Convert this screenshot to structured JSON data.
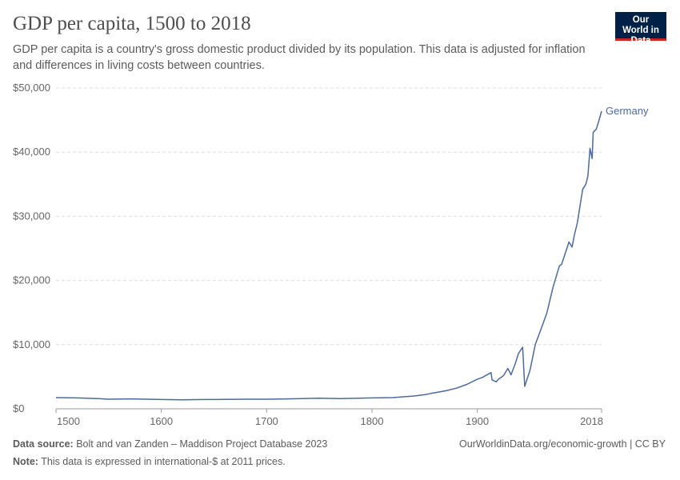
{
  "header": {
    "title": "GDP per capita, 1500 to 2018",
    "subtitle": "GDP per capita is a country's gross domestic product divided by its population. This data is adjusted for inflation and differences in living costs between countries.",
    "logo": "Our World in Data",
    "logo_color": "#002147",
    "logo_accent": "#ce261e"
  },
  "footer": {
    "source_label": "Data source:",
    "source": "Bolt and van Zanden – Maddison Project Database 2023",
    "url": "OurWorldinData.org/economic-growth | CC BY",
    "note_label": "Note:",
    "note": "This data is expressed in international-$ at 2011 prices."
  },
  "chart_data": {
    "type": "line",
    "title": "GDP per capita, 1500 to 2018",
    "xlim": [
      1500,
      2018
    ],
    "ylim": [
      0,
      50000
    ],
    "x_ticks": [
      {
        "v": 1500,
        "label": "1500"
      },
      {
        "v": 1600,
        "label": "1600"
      },
      {
        "v": 1700,
        "label": "1700"
      },
      {
        "v": 1800,
        "label": "1800"
      },
      {
        "v": 1900,
        "label": "1900"
      },
      {
        "v": 2018,
        "label": "2018"
      }
    ],
    "y_ticks": [
      {
        "v": 0,
        "label": "$0"
      },
      {
        "v": 10000,
        "label": "$10,000"
      },
      {
        "v": 20000,
        "label": "$20,000"
      },
      {
        "v": 30000,
        "label": "$30,000"
      },
      {
        "v": 40000,
        "label": "$40,000"
      },
      {
        "v": 50000,
        "label": "$50,000"
      }
    ],
    "grid": "horizontal dashed",
    "legend": "line-end label",
    "series": [
      {
        "name": "Germany",
        "color": "#4c6a9c",
        "x": [
          1500,
          1520,
          1540,
          1550,
          1570,
          1600,
          1620,
          1640,
          1650,
          1680,
          1700,
          1720,
          1750,
          1770,
          1800,
          1820,
          1840,
          1850,
          1856,
          1870,
          1880,
          1890,
          1900,
          1905,
          1913,
          1914,
          1918,
          1920,
          1925,
          1929,
          1932,
          1936,
          1939,
          1943,
          1945,
          1947,
          1950,
          1955,
          1960,
          1966,
          1972,
          1978,
          1980,
          1985,
          1987,
          1990,
          1992,
          1995,
          2000,
          2003,
          2005,
          2007,
          2009,
          2010,
          2013,
          2015,
          2018
        ],
        "y": [
          1750,
          1700,
          1600,
          1500,
          1550,
          1450,
          1400,
          1450,
          1450,
          1500,
          1500,
          1550,
          1650,
          1600,
          1700,
          1750,
          2000,
          2200,
          2400,
          2800,
          3200,
          3800,
          4600,
          4900,
          5650,
          4500,
          4200,
          4600,
          5200,
          6300,
          5300,
          7000,
          8600,
          9600,
          3500,
          4500,
          6000,
          10000,
          12200,
          14900,
          19000,
          22300,
          22500,
          25000,
          26000,
          25200,
          27000,
          29000,
          34200,
          35000,
          36300,
          40600,
          39000,
          43100,
          43600,
          44700,
          46400
        ]
      }
    ]
  }
}
